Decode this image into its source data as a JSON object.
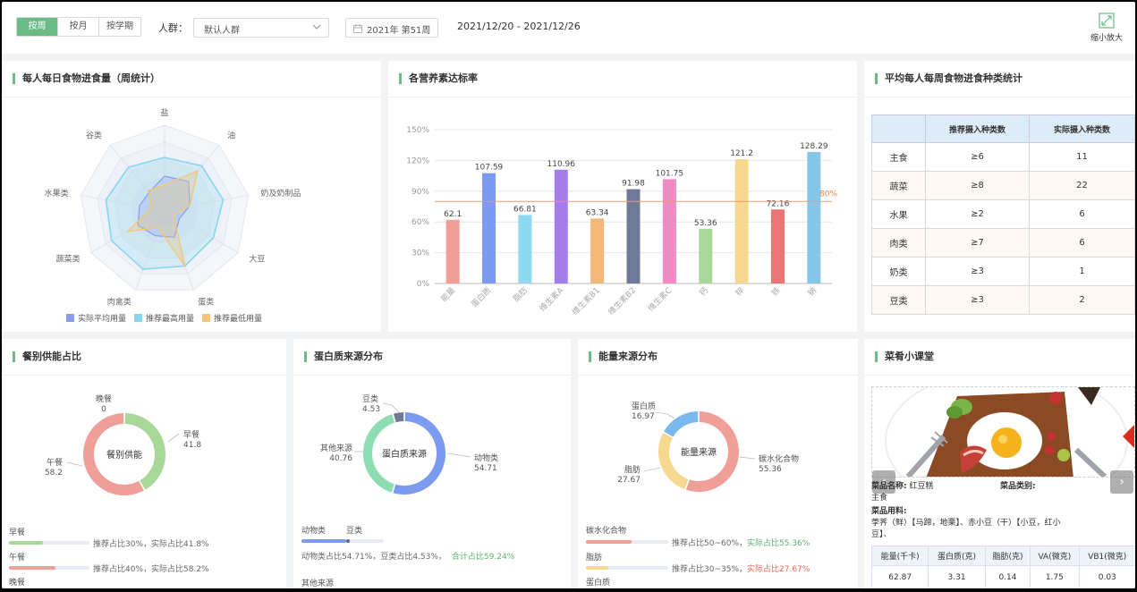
{
  "toolbar": {
    "tabs": [
      {
        "label": "按周",
        "active": true
      },
      {
        "label": "按月",
        "active": false
      },
      {
        "label": "按学期",
        "active": false
      }
    ],
    "crowd_label": "人群：",
    "crowd_value": "默认人群",
    "week_value": "2021年 第51周",
    "date_range": "2021/12/20 - 2021/12/26",
    "zoom_label": "缩小放大",
    "accent_color": "#6cbb86"
  },
  "radar": {
    "title": "每人每日食物进食量（周统计）",
    "axes": [
      "盐",
      "油",
      "奶及奶制品",
      "大豆",
      "蛋类",
      "肉禽类",
      "蔬菜类",
      "水果类",
      "谷类"
    ],
    "legend": [
      "实际平均用量",
      "推荐最高用量",
      "推荐最低用量"
    ],
    "colors": [
      "#8a9df0",
      "#87d6ee",
      "#f3c777"
    ]
  },
  "bar_chart": {
    "title": "各营养素达标率"
  },
  "chart_data": [
    {
      "type": "bar",
      "title": "各营养素达标率",
      "categories": [
        "能量",
        "蛋白质",
        "脂肪",
        "维生素A",
        "维生素B1",
        "维生素B2",
        "维生素C",
        "钙",
        "锌",
        "铁",
        "钠"
      ],
      "values": [
        62.1,
        107.59,
        66.81,
        110.96,
        63.34,
        91.98,
        101.75,
        53.36,
        121.2,
        72.16,
        128.29
      ],
      "colors": [
        "#ef9f98",
        "#7b9bf0",
        "#8fd8f2",
        "#a57de8",
        "#f2b87a",
        "#6f7a98",
        "#ee8ac4",
        "#a8d898",
        "#f6d98e",
        "#e97575",
        "#86c6ea"
      ],
      "yticks": [
        "0%",
        "30%",
        "60%",
        "90%",
        "120%",
        "150%"
      ],
      "ylim": [
        0,
        150
      ],
      "reference": {
        "value": 80,
        "label": "80%"
      }
    },
    {
      "type": "pie",
      "title": "餐别供能",
      "labels": [
        "早餐",
        "午餐",
        "晚餐"
      ],
      "values": [
        41.8,
        58.2,
        0
      ],
      "colors": [
        "#a8d898",
        "#ef9f98",
        "#8a9df0"
      ]
    },
    {
      "type": "pie",
      "title": "蛋白质来源",
      "labels": [
        "动物类",
        "其他来源",
        "豆类"
      ],
      "values": [
        54.71,
        40.76,
        4.53
      ],
      "colors": [
        "#7b9bf0",
        "#8ddcb2",
        "#6f7a98"
      ]
    },
    {
      "type": "pie",
      "title": "能量来源",
      "labels": [
        "碳水化合物",
        "脂肪",
        "蛋白质"
      ],
      "values": [
        55.36,
        27.67,
        16.97
      ],
      "colors": [
        "#ef9f98",
        "#f6d98e",
        "#7ab8ef"
      ]
    }
  ],
  "types_table": {
    "title": "平均每人每周食物进食种类统计",
    "headers": [
      "",
      "推荐摄入种类数",
      "实际摄入种类数"
    ],
    "rows": [
      [
        "主食",
        "≥6",
        "11"
      ],
      [
        "蔬菜",
        "≥8",
        "22"
      ],
      [
        "水果",
        "≥2",
        "6"
      ],
      [
        "肉类",
        "≥7",
        "6"
      ],
      [
        "奶类",
        "≥3",
        "1"
      ],
      [
        "豆类",
        "≥3",
        "2"
      ]
    ]
  },
  "meal": {
    "title": "餐别供能占比",
    "center": "餐别供能",
    "slices": [
      {
        "name": "早餐",
        "value": "41.8"
      },
      {
        "name": "午餐",
        "value": "58.2"
      },
      {
        "name": "晚餐",
        "value": "0"
      }
    ],
    "list": [
      {
        "name": "早餐",
        "text": "推荐占比30%，实际占比41.8%",
        "fill": 0.418,
        "color": "#a8d898"
      },
      {
        "name": "午餐",
        "text": "推荐占比40%，实际占比58.2%",
        "fill": 0.582,
        "color": "#ef9f98"
      },
      {
        "name": "晚餐"
      }
    ]
  },
  "protein": {
    "title": "蛋白质来源分布",
    "center": "蛋白质来源",
    "slices": [
      {
        "name": "动物类",
        "value": "54.71"
      },
      {
        "name": "其他来源",
        "value": "40.76"
      },
      {
        "name": "豆类",
        "value": "4.53"
      }
    ],
    "list_labels": [
      "动物类",
      "豆类"
    ],
    "list_text": "动物类占比54.71%，豆类占比4.53%，",
    "list_total": "合计占比59.24%",
    "fill_a": 0.5471,
    "fill_b": 0.0453,
    "other_label": "其他来源"
  },
  "energy": {
    "title": "能量来源分布",
    "center": "能量来源",
    "slices": [
      {
        "name": "碳水化合物",
        "value": "55.36"
      },
      {
        "name": "脂肪",
        "value": "27.67"
      },
      {
        "name": "蛋白质",
        "value": "16.97"
      }
    ],
    "list": [
      {
        "name": "碳水化合物",
        "text": "推荐占比50~60%，",
        "status": "实际占比55.36%",
        "status_color": "#5bb36d",
        "fill": 0.5536,
        "color": "#ef9f98"
      },
      {
        "name": "脂肪",
        "text": "推荐占比30~35%，",
        "status": "实际占比27.67%",
        "status_color": "#e06a55",
        "fill": 0.2767,
        "color": "#f6d98e"
      },
      {
        "name": "蛋白质"
      }
    ]
  },
  "dish": {
    "title": "菜肴小课堂",
    "name_label": "菜品名称:",
    "name_value": "红豆糕",
    "type_label": "菜品类别:",
    "type_value": "主食",
    "ingredients_label": "菜品用料:",
    "ingredients_value_1": "荸荠（鲜）【马蹄，地栗】、赤小豆（干）【小豆，红小",
    "ingredients_value_2": "豆】、",
    "nutri_headers": [
      "能量(千卡)",
      "蛋白质(克)",
      "脂肪(克)",
      "VA(微克)",
      "VB1(微克)"
    ],
    "nutri_values": [
      "62.87",
      "3.31",
      "0.14",
      "1.75",
      "0.03"
    ]
  }
}
